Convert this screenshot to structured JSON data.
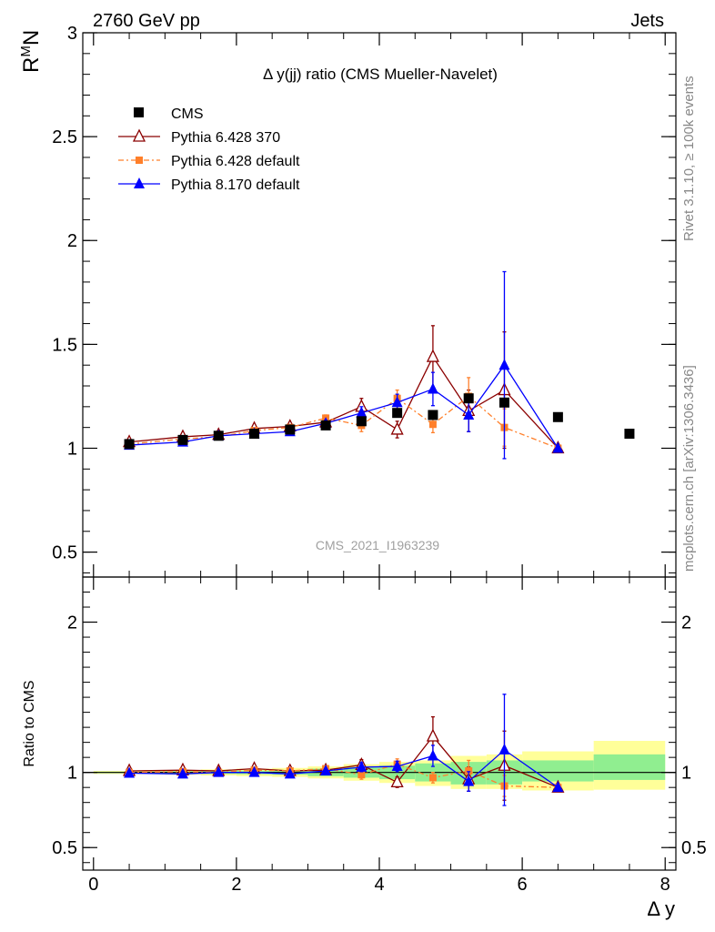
{
  "header": {
    "left": "2760 GeV pp",
    "right": "Jets"
  },
  "side_text": {
    "upper": "Rivet 3.1.10, ≥ 100k events",
    "lower": "mcplots.cern.ch [arXiv:1306.3436]"
  },
  "watermark": "CMS_2021_I1963239",
  "colors": {
    "cms": "#000000",
    "py6_370": "#8b0000",
    "py6_def": "#ff7f2a",
    "py8_def": "#0000ff",
    "band_inner": "#90ee90",
    "band_outer": "#ffff99"
  },
  "chart_data": [
    {
      "type": "scatter",
      "panel": "main",
      "title": "Δ y(jj) ratio (CMS Mueller-Navelet)",
      "ylabel": "R^M_N",
      "xlim": [
        -0.15,
        8.15
      ],
      "ylim": [
        0.38,
        3.0
      ],
      "y_ticks": [
        "0.5",
        "1",
        "1.5",
        "2",
        "2.5",
        "3"
      ],
      "y_tick_values": [
        0.5,
        1,
        1.5,
        2,
        2.5,
        3
      ],
      "legend_position": "top-left",
      "series": [
        {
          "name": "CMS",
          "key": "cms",
          "marker": "square",
          "x": [
            0.5,
            1.25,
            1.75,
            2.25,
            2.75,
            3.25,
            3.75,
            4.25,
            4.75,
            5.25,
            5.75,
            6.5,
            7.5
          ],
          "y": [
            1.02,
            1.04,
            1.06,
            1.07,
            1.09,
            1.11,
            1.13,
            1.17,
            1.16,
            1.24,
            1.22,
            1.15,
            1.07
          ]
        },
        {
          "name": "Pythia 6.428 370",
          "key": "py6_370",
          "marker": "open-triangle",
          "dash": "",
          "x": [
            0.5,
            1.25,
            1.75,
            2.25,
            2.75,
            3.25,
            3.75,
            4.25,
            4.75,
            5.25,
            5.75,
            6.5
          ],
          "y": [
            1.03,
            1.055,
            1.065,
            1.095,
            1.105,
            1.125,
            1.2,
            1.09,
            1.44,
            1.18,
            1.28,
            1.0
          ],
          "err": [
            0.005,
            0.006,
            0.008,
            0.01,
            0.012,
            0.015,
            0.04,
            0.04,
            0.15,
            0.1,
            0.28,
            0
          ]
        },
        {
          "name": "Pythia 6.428 default",
          "key": "py6_def",
          "marker": "small-square",
          "dash": "6,3,2,3",
          "x": [
            0.5,
            1.25,
            1.75,
            2.25,
            2.75,
            3.25,
            3.75,
            4.25,
            4.75,
            5.25,
            5.75,
            6.5
          ],
          "y": [
            1.02,
            1.045,
            1.055,
            1.085,
            1.1,
            1.145,
            1.11,
            1.24,
            1.115,
            1.25,
            1.1,
            1.0
          ],
          "err": [
            0.005,
            0.006,
            0.008,
            0.01,
            0.012,
            0.015,
            0.03,
            0.04,
            0.04,
            0.09,
            0.09,
            0
          ]
        },
        {
          "name": "Pythia 8.170 default",
          "key": "py8_def",
          "marker": "filled-triangle",
          "dash": "",
          "x": [
            0.5,
            1.25,
            1.75,
            2.25,
            2.75,
            3.25,
            3.75,
            4.25,
            4.75,
            5.25,
            5.75,
            6.5
          ],
          "y": [
            1.015,
            1.03,
            1.06,
            1.07,
            1.08,
            1.12,
            1.17,
            1.22,
            1.285,
            1.16,
            1.4,
            1.0
          ],
          "err": [
            0.005,
            0.006,
            0.008,
            0.01,
            0.012,
            0.015,
            0.03,
            0.04,
            0.08,
            0.08,
            0.45,
            0
          ]
        }
      ]
    },
    {
      "type": "scatter",
      "panel": "ratio",
      "ylabel": "Ratio to CMS",
      "xlabel": "Δ y",
      "xlim": [
        -0.15,
        8.15
      ],
      "ylim": [
        0.35,
        2.3
      ],
      "x_ticks": [
        "0",
        "2",
        "4",
        "6",
        "8"
      ],
      "x_tick_values": [
        0,
        2,
        4,
        6,
        8
      ],
      "y_ticks": [
        "0.5",
        "1",
        "2"
      ],
      "y_tick_values": [
        0.5,
        1,
        2
      ],
      "bands": {
        "x_edges": [
          0.0,
          1.0,
          1.5,
          2.0,
          2.5,
          3.0,
          3.5,
          4.0,
          4.5,
          5.0,
          5.5,
          6.0,
          7.0,
          8.0
        ],
        "inner": [
          [
            0.995,
            1.005
          ],
          [
            0.992,
            1.008
          ],
          [
            0.99,
            1.01
          ],
          [
            0.988,
            1.012
          ],
          [
            0.985,
            1.015
          ],
          [
            0.975,
            1.025
          ],
          [
            0.965,
            1.035
          ],
          [
            0.955,
            1.045
          ],
          [
            0.94,
            1.06
          ],
          [
            0.92,
            1.07
          ],
          [
            0.92,
            1.08
          ],
          [
            0.94,
            1.08
          ],
          [
            0.95,
            1.12
          ]
        ],
        "outer": [
          [
            0.99,
            1.01
          ],
          [
            0.985,
            1.015
          ],
          [
            0.98,
            1.02
          ],
          [
            0.975,
            1.025
          ],
          [
            0.97,
            1.03
          ],
          [
            0.96,
            1.04
          ],
          [
            0.945,
            1.055
          ],
          [
            0.93,
            1.07
          ],
          [
            0.91,
            1.08
          ],
          [
            0.89,
            1.11
          ],
          [
            0.89,
            1.12
          ],
          [
            0.88,
            1.14
          ],
          [
            0.885,
            1.21
          ]
        ]
      },
      "series": [
        {
          "name": "Pythia 6.428 370",
          "key": "py6_370",
          "marker": "open-triangle",
          "dash": "",
          "x": [
            0.5,
            1.25,
            1.75,
            2.25,
            2.75,
            3.25,
            3.75,
            4.25,
            4.75,
            5.25,
            5.75,
            6.5
          ],
          "y": [
            1.01,
            1.015,
            1.01,
            1.025,
            1.01,
            1.015,
            1.05,
            0.935,
            1.24,
            0.955,
            1.045,
            0.9
          ],
          "err": [
            0.005,
            0.006,
            0.008,
            0.01,
            0.012,
            0.015,
            0.035,
            0.035,
            0.13,
            0.08,
            0.23,
            0
          ]
        },
        {
          "name": "Pythia 6.428 default",
          "key": "py6_def",
          "marker": "small-square",
          "dash": "6,3,2,3",
          "x": [
            0.5,
            1.25,
            1.75,
            2.25,
            2.75,
            3.25,
            3.75,
            4.25,
            4.75,
            5.25,
            5.75,
            6.5
          ],
          "y": [
            1.0,
            1.005,
            1.0,
            1.015,
            1.01,
            1.025,
            0.985,
            1.055,
            0.965,
            1.01,
            0.91,
            0.9
          ],
          "err": [
            0.005,
            0.006,
            0.008,
            0.01,
            0.012,
            0.015,
            0.03,
            0.035,
            0.035,
            0.07,
            0.07,
            0
          ]
        },
        {
          "name": "Pythia 8.170 default",
          "key": "py8_def",
          "marker": "filled-triangle",
          "dash": "",
          "x": [
            0.5,
            1.25,
            1.75,
            2.25,
            2.75,
            3.25,
            3.75,
            4.25,
            4.75,
            5.25,
            5.75,
            6.5
          ],
          "y": [
            0.995,
            0.99,
            1.0,
            1.0,
            0.99,
            1.01,
            1.035,
            1.04,
            1.11,
            0.94,
            1.15,
            0.9
          ],
          "err": [
            0.005,
            0.006,
            0.008,
            0.01,
            0.012,
            0.015,
            0.03,
            0.035,
            0.07,
            0.065,
            0.37,
            0
          ]
        }
      ]
    }
  ]
}
